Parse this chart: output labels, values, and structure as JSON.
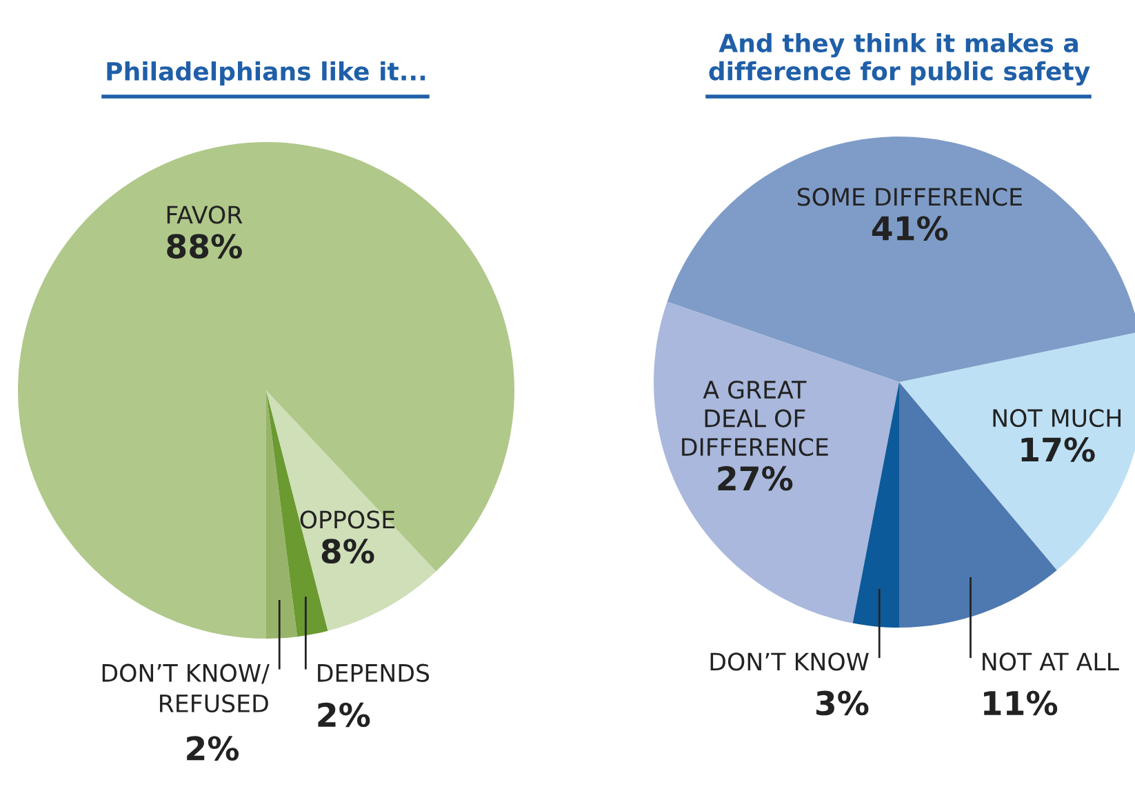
{
  "chart_data": [
    {
      "type": "pie",
      "title": "Philadelphians like it...",
      "categories": [
        "DON’T KNOW/\nREFUSED",
        "DEPENDS",
        "OPPOSE",
        "FAVOR"
      ],
      "values": [
        2,
        2,
        8,
        88
      ],
      "value_labels": [
        "2%",
        "2%",
        "8%",
        "88%"
      ],
      "colors": [
        "#98b46a",
        "#6a9a30",
        "#cfdfb8",
        "#b0c88a"
      ]
    },
    {
      "type": "pie",
      "title": "And they think it makes a\ndifference for public safety",
      "categories": [
        "NOT AT ALL",
        "NOT MUCH",
        "SOME DIFFERENCE",
        "A GREAT\nDEAL OF\nDIFFERENCE",
        "DON’T KNOW"
      ],
      "values": [
        11,
        17,
        41,
        27,
        3
      ],
      "value_labels": [
        "11%",
        "17%",
        "41%",
        "27%",
        "3%"
      ],
      "colors": [
        "#4e78b0",
        "#bde0f5",
        "#7f9cc8",
        "#a9b8dc",
        "#0d5a9a"
      ]
    }
  ]
}
